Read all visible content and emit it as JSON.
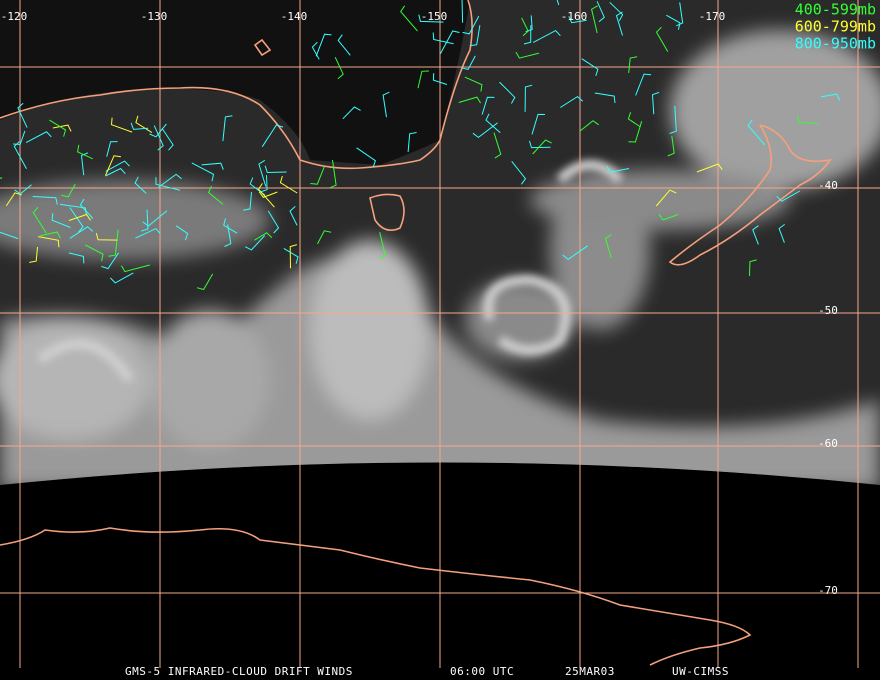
{
  "longitude_labels": [
    "-120",
    "-130",
    "-140",
    "-150",
    "-160",
    "-170"
  ],
  "latitude_labels": [
    "-40",
    "-50",
    "-60",
    "-70"
  ],
  "legend": [
    {
      "label": "400-599mb",
      "color": "#33ff33"
    },
    {
      "label": "600-799mb",
      "color": "#ffff33"
    },
    {
      "label": "800-950mb",
      "color": "#33ffff"
    }
  ],
  "footer": [
    "GMS-5 INFRARED-CLOUD DRIFT WINDS",
    "06:00 UTC",
    "25MAR03",
    "UW-CIMSS"
  ]
}
